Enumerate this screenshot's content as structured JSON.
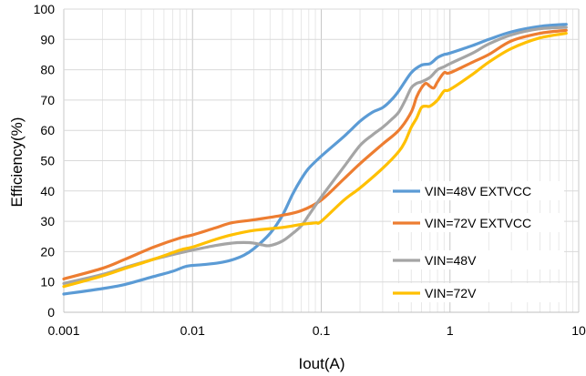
{
  "chart_data": {
    "type": "line",
    "xlabel": "Iout(A)",
    "ylabel": "Efficiency(%)",
    "x_scale": "log",
    "xlim": [
      0.001,
      10
    ],
    "ylim": [
      0,
      100
    ],
    "x_ticks": [
      "0.001",
      "0.01",
      "0.1",
      "1",
      "10"
    ],
    "y_ticks": [
      "0",
      "10",
      "20",
      "30",
      "40",
      "50",
      "60",
      "70",
      "80",
      "90",
      "100"
    ],
    "grid": true,
    "legend_position": "right",
    "series": [
      {
        "name": "VIN=48V EXTVCC",
        "color": "#5B9BD5",
        "points": [
          [
            0.001,
            6
          ],
          [
            0.002,
            7.8
          ],
          [
            0.003,
            9.2
          ],
          [
            0.005,
            11.8
          ],
          [
            0.007,
            13.5
          ],
          [
            0.009,
            15.2
          ],
          [
            0.012,
            15.7
          ],
          [
            0.016,
            16.3
          ],
          [
            0.02,
            17.2
          ],
          [
            0.025,
            18.8
          ],
          [
            0.03,
            21
          ],
          [
            0.04,
            26
          ],
          [
            0.05,
            32
          ],
          [
            0.06,
            39
          ],
          [
            0.07,
            44
          ],
          [
            0.08,
            47.5
          ],
          [
            0.1,
            51.5
          ],
          [
            0.15,
            58
          ],
          [
            0.2,
            63
          ],
          [
            0.25,
            66
          ],
          [
            0.3,
            67.5
          ],
          [
            0.35,
            70
          ],
          [
            0.4,
            73
          ],
          [
            0.5,
            79
          ],
          [
            0.6,
            81.5
          ],
          [
            0.7,
            82
          ],
          [
            0.8,
            84
          ],
          [
            0.9,
            85
          ],
          [
            1,
            85.5
          ],
          [
            1.5,
            88
          ],
          [
            2,
            90
          ],
          [
            3,
            92.5
          ],
          [
            5,
            94.3
          ],
          [
            8,
            95
          ]
        ]
      },
      {
        "name": "VIN=72V EXTVCC",
        "color": "#ED7D31",
        "points": [
          [
            0.001,
            11
          ],
          [
            0.002,
            14.5
          ],
          [
            0.003,
            17.5
          ],
          [
            0.005,
            21.5
          ],
          [
            0.008,
            24.5
          ],
          [
            0.01,
            25.5
          ],
          [
            0.015,
            27.8
          ],
          [
            0.02,
            29.5
          ],
          [
            0.03,
            30.5
          ],
          [
            0.05,
            32
          ],
          [
            0.07,
            33.5
          ],
          [
            0.1,
            37
          ],
          [
            0.15,
            44
          ],
          [
            0.2,
            49
          ],
          [
            0.3,
            55.5
          ],
          [
            0.4,
            60
          ],
          [
            0.5,
            66
          ],
          [
            0.55,
            71
          ],
          [
            0.6,
            74
          ],
          [
            0.65,
            75.5
          ],
          [
            0.7,
            74.5
          ],
          [
            0.75,
            74
          ],
          [
            0.8,
            76
          ],
          [
            0.9,
            79
          ],
          [
            1,
            79
          ],
          [
            1.5,
            82.5
          ],
          [
            2,
            85
          ],
          [
            3,
            89.5
          ],
          [
            5,
            92
          ],
          [
            8,
            93
          ]
        ]
      },
      {
        "name": "VIN=48V",
        "color": "#A5A5A5",
        "points": [
          [
            0.001,
            9.5
          ],
          [
            0.002,
            12.5
          ],
          [
            0.003,
            14.8
          ],
          [
            0.005,
            17.5
          ],
          [
            0.007,
            19
          ],
          [
            0.01,
            20.5
          ],
          [
            0.015,
            22
          ],
          [
            0.02,
            22.8
          ],
          [
            0.025,
            23
          ],
          [
            0.03,
            22.8
          ],
          [
            0.035,
            22.2
          ],
          [
            0.04,
            22
          ],
          [
            0.05,
            23.5
          ],
          [
            0.06,
            26
          ],
          [
            0.07,
            28.5
          ],
          [
            0.08,
            32
          ],
          [
            0.1,
            38
          ],
          [
            0.15,
            48
          ],
          [
            0.2,
            55
          ],
          [
            0.25,
            58.5
          ],
          [
            0.3,
            61
          ],
          [
            0.35,
            63.5
          ],
          [
            0.4,
            66
          ],
          [
            0.45,
            70
          ],
          [
            0.5,
            74
          ],
          [
            0.55,
            75.5
          ],
          [
            0.6,
            76
          ],
          [
            0.7,
            77.5
          ],
          [
            0.8,
            80
          ],
          [
            0.9,
            81
          ],
          [
            1,
            82
          ],
          [
            1.5,
            85.5
          ],
          [
            2,
            88.5
          ],
          [
            3,
            91.5
          ],
          [
            5,
            93.5
          ],
          [
            8,
            94
          ]
        ]
      },
      {
        "name": "VIN=72V",
        "color": "#FFC000",
        "points": [
          [
            0.001,
            8.5
          ],
          [
            0.002,
            12
          ],
          [
            0.003,
            14.5
          ],
          [
            0.005,
            17.5
          ],
          [
            0.008,
            20.5
          ],
          [
            0.01,
            21.5
          ],
          [
            0.015,
            24
          ],
          [
            0.02,
            25.5
          ],
          [
            0.03,
            27
          ],
          [
            0.05,
            28
          ],
          [
            0.07,
            29
          ],
          [
            0.09,
            29.5
          ],
          [
            0.1,
            30
          ],
          [
            0.15,
            37
          ],
          [
            0.2,
            41
          ],
          [
            0.3,
            47.5
          ],
          [
            0.4,
            53
          ],
          [
            0.45,
            56.5
          ],
          [
            0.5,
            61
          ],
          [
            0.55,
            64
          ],
          [
            0.6,
            67.5
          ],
          [
            0.65,
            68
          ],
          [
            0.7,
            68
          ],
          [
            0.8,
            70
          ],
          [
            0.9,
            73
          ],
          [
            1,
            73.5
          ],
          [
            1.5,
            78.5
          ],
          [
            2,
            82.5
          ],
          [
            3,
            87
          ],
          [
            5,
            90.5
          ],
          [
            8,
            92
          ]
        ]
      }
    ]
  }
}
